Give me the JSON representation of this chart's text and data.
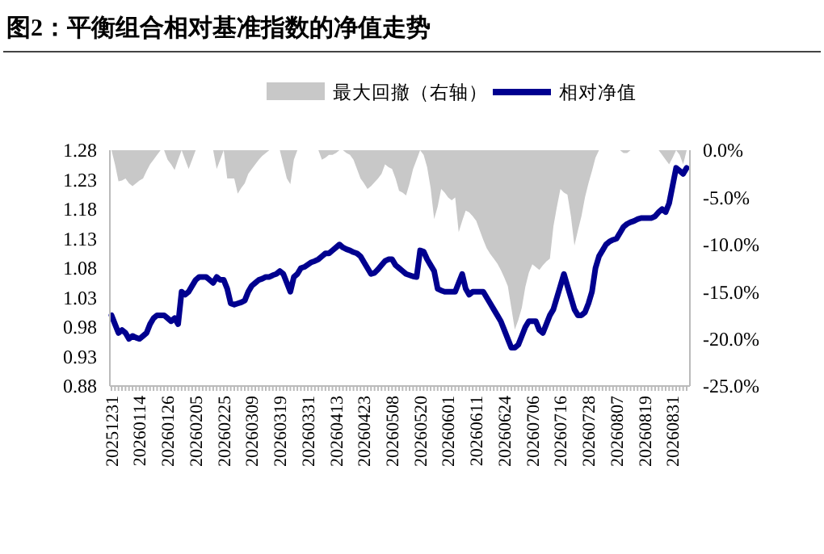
{
  "chart_data": {
    "type": "line",
    "title": "图2：平衡组合相对基准指数的净值走势",
    "categories": [
      "20251231",
      null,
      null,
      null,
      null,
      null,
      null,
      null,
      "20260114",
      null,
      null,
      null,
      null,
      null,
      null,
      null,
      "20260126",
      null,
      null,
      null,
      null,
      null,
      null,
      null,
      "20260205",
      null,
      null,
      null,
      null,
      null,
      null,
      null,
      "20260225",
      null,
      null,
      null,
      null,
      null,
      null,
      null,
      "20260309",
      null,
      null,
      null,
      null,
      null,
      null,
      null,
      "20260319",
      null,
      null,
      null,
      null,
      null,
      null,
      null,
      "20260331",
      null,
      null,
      null,
      null,
      null,
      null,
      null,
      "20260413",
      null,
      null,
      null,
      null,
      null,
      null,
      null,
      "20260423",
      null,
      null,
      null,
      null,
      null,
      null,
      null,
      "20260508",
      null,
      null,
      null,
      null,
      null,
      null,
      null,
      "20260520",
      null,
      null,
      null,
      null,
      null,
      null,
      null,
      "20260601",
      null,
      null,
      null,
      null,
      null,
      null,
      null,
      "20260611",
      null,
      null,
      null,
      null,
      null,
      null,
      null,
      "20260624",
      null,
      null,
      null,
      null,
      null,
      null,
      null,
      "20260706",
      null,
      null,
      null,
      null,
      null,
      null,
      null,
      "20260716",
      null,
      null,
      null,
      null,
      null,
      null,
      null,
      "20260728",
      null,
      null,
      null,
      null,
      null,
      null,
      null,
      "20260807",
      null,
      null,
      null,
      null,
      null,
      null,
      null,
      "20260819",
      null,
      null,
      null,
      null,
      null,
      null,
      null,
      "20260831",
      null,
      null,
      null,
      null
    ],
    "series": [
      {
        "name": "最大回撤（右轴）",
        "type": "area",
        "axis": "y2",
        "color": "#c8c8c8",
        "values": [
          0,
          -1.5,
          -3.3,
          -3.2,
          -3,
          -3.5,
          -3.8,
          -3.5,
          -3.2,
          -3,
          -2.2,
          -1.5,
          -1,
          -0.5,
          0,
          0,
          -1,
          -1.5,
          -2.1,
          -1,
          0,
          -1,
          -2,
          -1,
          0,
          0,
          0,
          0,
          0,
          0,
          -2,
          -1,
          0,
          -3,
          -3,
          -3,
          -4.6,
          -4,
          -3.5,
          -2.5,
          -2,
          -1.5,
          -1,
          -0.6,
          -0.3,
          0,
          0,
          0,
          0,
          -1.5,
          -3,
          -3.6,
          -1,
          0,
          0,
          0,
          0,
          0,
          0,
          0,
          -1,
          -0.8,
          -0.5,
          -0.5,
          -0.3,
          0,
          0,
          -0.3,
          -0.5,
          -1,
          -2,
          -3,
          -3.5,
          -4.1,
          -3.8,
          -3.4,
          -3,
          -2.5,
          -1.5,
          -1.8,
          -2,
          -3,
          -4.3,
          -4.5,
          -4.8,
          -3.5,
          -2,
          -1,
          0,
          -0.5,
          -1.8,
          -4,
          -7.3,
          -6,
          -4.1,
          -4.5,
          -5,
          -5.3,
          -5,
          -8.7,
          -7.5,
          -6.4,
          -6.6,
          -7,
          -7.5,
          -8.5,
          -9.5,
          -10.4,
          -11,
          -11.5,
          -12,
          -12.7,
          -13.5,
          -14.4,
          -16.7,
          -19,
          -18,
          -16.7,
          -14.5,
          -13,
          -12.1,
          -12.4,
          -12.7,
          -12.2,
          -11.8,
          -11.5,
          -8.1,
          -6,
          -4.1,
          -4.5,
          -4.7,
          -7,
          -10.1,
          -8.5,
          -7,
          -5,
          -3.5,
          -2.2,
          -0.8,
          0,
          0,
          0,
          0,
          0,
          0,
          0,
          -0.3,
          -0.3,
          0,
          0,
          0,
          0,
          0,
          0,
          0,
          0,
          0,
          -0.5,
          -1,
          -1.5,
          -0.8,
          0,
          -0.5,
          -1.5,
          0
        ]
      },
      {
        "name": "相对净值",
        "color": "#00008f",
        "values": [
          1.0,
          0.985,
          0.97,
          0.975,
          0.97,
          0.96,
          0.965,
          0.962,
          0.96,
          0.965,
          0.97,
          0.985,
          0.995,
          1.0,
          1.0,
          1.0,
          0.995,
          0.99,
          0.995,
          0.985,
          1.04,
          1.035,
          1.04,
          1.05,
          1.06,
          1.065,
          1.065,
          1.065,
          1.06,
          1.055,
          1.065,
          1.06,
          1.06,
          1.045,
          1.02,
          1.018,
          1.02,
          1.022,
          1.025,
          1.04,
          1.05,
          1.055,
          1.06,
          1.062,
          1.065,
          1.065,
          1.068,
          1.07,
          1.075,
          1.07,
          1.055,
          1.04,
          1.065,
          1.07,
          1.08,
          1.082,
          1.086,
          1.09,
          1.092,
          1.095,
          1.1,
          1.105,
          1.105,
          1.11,
          1.115,
          1.12,
          1.115,
          1.112,
          1.11,
          1.107,
          1.105,
          1.1,
          1.09,
          1.08,
          1.07,
          1.072,
          1.078,
          1.085,
          1.092,
          1.095,
          1.095,
          1.085,
          1.08,
          1.075,
          1.07,
          1.068,
          1.066,
          1.065,
          1.11,
          1.108,
          1.095,
          1.085,
          1.075,
          1.045,
          1.042,
          1.04,
          1.04,
          1.04,
          1.04,
          1.055,
          1.07,
          1.045,
          1.035,
          1.04,
          1.04,
          1.04,
          1.04,
          1.03,
          1.02,
          1.01,
          1.0,
          0.99,
          0.975,
          0.96,
          0.945,
          0.945,
          0.95,
          0.965,
          0.98,
          0.99,
          0.99,
          0.99,
          0.975,
          0.97,
          0.985,
          1.0,
          1.01,
          1.03,
          1.05,
          1.07,
          1.05,
          1.03,
          1.01,
          1.0,
          1.0,
          1.005,
          1.02,
          1.04,
          1.08,
          1.1,
          1.11,
          1.12,
          1.125,
          1.128,
          1.13,
          1.14,
          1.15,
          1.155,
          1.158,
          1.16,
          1.163,
          1.165,
          1.165,
          1.165,
          1.165,
          1.168,
          1.175,
          1.18,
          1.175,
          1.19,
          1.22,
          1.25,
          1.245,
          1.24,
          1.25
        ]
      }
    ],
    "ylim": [
      0.88,
      1.28
    ],
    "yticks": [
      0.88,
      0.93,
      0.98,
      1.03,
      1.08,
      1.13,
      1.18,
      1.23,
      1.28
    ],
    "y2lim": [
      -25,
      0
    ],
    "y2ticks": [
      {
        "value": 0,
        "label": "0.0%"
      },
      {
        "value": -5,
        "label": "-5.0%"
      },
      {
        "value": -10,
        "label": "-10.0%"
      },
      {
        "value": -15,
        "label": "-15.0%"
      },
      {
        "value": -20,
        "label": "-20.0%"
      },
      {
        "value": -25,
        "label": "-25.0%"
      }
    ],
    "legend": "top",
    "grid": false
  }
}
